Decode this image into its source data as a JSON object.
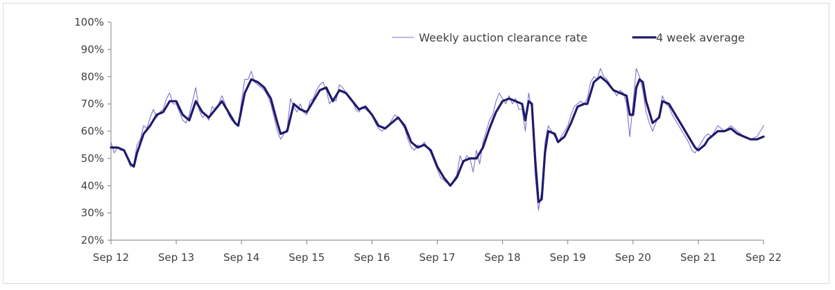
{
  "chart_data": {
    "type": "line",
    "title": "",
    "xlabel": "",
    "ylabel": "",
    "x_start": "Sep 12",
    "x_end": "Sep 22",
    "xticks": [
      "Sep 12",
      "Sep 13",
      "Sep 14",
      "Sep 15",
      "Sep 16",
      "Sep 17",
      "Sep 18",
      "Sep 19",
      "Sep 20",
      "Sep 21",
      "Sep 22"
    ],
    "yticks": [
      "20%",
      "30%",
      "40%",
      "50%",
      "60%",
      "70%",
      "80%",
      "90%",
      "100%"
    ],
    "ylim": [
      20,
      100
    ],
    "grid": false,
    "legend_position": "top-right",
    "series": [
      {
        "name": "Weekly auction clearance rate",
        "color": "#7b6fd0",
        "style": "thin",
        "points": [
          [
            0.0,
            56
          ],
          [
            0.05,
            52
          ],
          [
            0.1,
            54
          ],
          [
            0.15,
            53
          ],
          [
            0.2,
            53
          ],
          [
            0.25,
            50
          ],
          [
            0.3,
            47
          ],
          [
            0.35,
            48
          ],
          [
            0.4,
            55
          ],
          [
            0.45,
            57
          ],
          [
            0.5,
            62
          ],
          [
            0.55,
            61
          ],
          [
            0.6,
            65
          ],
          [
            0.65,
            68
          ],
          [
            0.7,
            65
          ],
          [
            0.75,
            67
          ],
          [
            0.8,
            68
          ],
          [
            0.85,
            72
          ],
          [
            0.9,
            74
          ],
          [
            0.95,
            70
          ],
          [
            1.0,
            70
          ],
          [
            1.05,
            67
          ],
          [
            1.1,
            64
          ],
          [
            1.15,
            63
          ],
          [
            1.2,
            66
          ],
          [
            1.25,
            71
          ],
          [
            1.3,
            76
          ],
          [
            1.35,
            68
          ],
          [
            1.4,
            65
          ],
          [
            1.45,
            66
          ],
          [
            1.5,
            64
          ],
          [
            1.55,
            69
          ],
          [
            1.6,
            68
          ],
          [
            1.65,
            70
          ],
          [
            1.7,
            73
          ],
          [
            1.75,
            70
          ],
          [
            1.8,
            66
          ],
          [
            1.85,
            64
          ],
          [
            1.9,
            63
          ],
          [
            1.95,
            62
          ],
          [
            2.0,
            71
          ],
          [
            2.05,
            79
          ],
          [
            2.1,
            79
          ],
          [
            2.15,
            82
          ],
          [
            2.2,
            78
          ],
          [
            2.25,
            77
          ],
          [
            2.3,
            76
          ],
          [
            2.35,
            75
          ],
          [
            2.4,
            73
          ],
          [
            2.45,
            70
          ],
          [
            2.5,
            65
          ],
          [
            2.55,
            60
          ],
          [
            2.6,
            57
          ],
          [
            2.65,
            59
          ],
          [
            2.7,
            61
          ],
          [
            2.75,
            72
          ],
          [
            2.8,
            69
          ],
          [
            2.85,
            67
          ],
          [
            2.9,
            70
          ],
          [
            2.95,
            67
          ],
          [
            3.0,
            66
          ],
          [
            3.05,
            71
          ],
          [
            3.1,
            72
          ],
          [
            3.15,
            75
          ],
          [
            3.2,
            77
          ],
          [
            3.25,
            78
          ],
          [
            3.3,
            75
          ],
          [
            3.35,
            70
          ],
          [
            3.4,
            72
          ],
          [
            3.45,
            71
          ],
          [
            3.5,
            77
          ],
          [
            3.55,
            76
          ],
          [
            3.6,
            74
          ],
          [
            3.65,
            72
          ],
          [
            3.7,
            71
          ],
          [
            3.75,
            68
          ],
          [
            3.8,
            67
          ],
          [
            3.85,
            69
          ],
          [
            3.9,
            68
          ],
          [
            3.95,
            67
          ],
          [
            4.0,
            66
          ],
          [
            4.05,
            63
          ],
          [
            4.1,
            61
          ],
          [
            4.15,
            60
          ],
          [
            4.2,
            61
          ],
          [
            4.25,
            62
          ],
          [
            4.3,
            64
          ],
          [
            4.35,
            66
          ],
          [
            4.4,
            65
          ],
          [
            4.45,
            63
          ],
          [
            4.5,
            61
          ],
          [
            4.55,
            57
          ],
          [
            4.6,
            54
          ],
          [
            4.65,
            53
          ],
          [
            4.7,
            55
          ],
          [
            4.75,
            54
          ],
          [
            4.8,
            56
          ],
          [
            4.85,
            54
          ],
          [
            4.9,
            52
          ],
          [
            4.95,
            49
          ],
          [
            5.0,
            46
          ],
          [
            5.05,
            43
          ],
          [
            5.1,
            42
          ],
          [
            5.15,
            41
          ],
          [
            5.2,
            40
          ],
          [
            5.25,
            42
          ],
          [
            5.3,
            44
          ],
          [
            5.35,
            51
          ],
          [
            5.4,
            48
          ],
          [
            5.45,
            51
          ],
          [
            5.5,
            50
          ],
          [
            5.55,
            45
          ],
          [
            5.6,
            53
          ],
          [
            5.65,
            48
          ],
          [
            5.7,
            56
          ],
          [
            5.75,
            60
          ],
          [
            5.8,
            64
          ],
          [
            5.85,
            66
          ],
          [
            5.9,
            71
          ],
          [
            5.95,
            74
          ],
          [
            6.0,
            72
          ],
          [
            6.05,
            70
          ],
          [
            6.1,
            73
          ],
          [
            6.15,
            70
          ],
          [
            6.2,
            72
          ],
          [
            6.25,
            68
          ],
          [
            6.3,
            68
          ],
          [
            6.35,
            60
          ],
          [
            6.4,
            74
          ],
          [
            6.45,
            68
          ],
          [
            6.5,
            44
          ],
          [
            6.55,
            31
          ],
          [
            6.6,
            38
          ],
          [
            6.65,
            56
          ],
          [
            6.7,
            62
          ],
          [
            6.75,
            60
          ],
          [
            6.8,
            58
          ],
          [
            6.85,
            56
          ],
          [
            6.9,
            58
          ],
          [
            6.95,
            60
          ],
          [
            7.0,
            62
          ],
          [
            7.05,
            66
          ],
          [
            7.1,
            69
          ],
          [
            7.15,
            70
          ],
          [
            7.2,
            71
          ],
          [
            7.25,
            70
          ],
          [
            7.3,
            72
          ],
          [
            7.35,
            78
          ],
          [
            7.4,
            80
          ],
          [
            7.45,
            79
          ],
          [
            7.5,
            83
          ],
          [
            7.55,
            80
          ],
          [
            7.6,
            79
          ],
          [
            7.65,
            77
          ],
          [
            7.7,
            75
          ],
          [
            7.75,
            73
          ],
          [
            7.8,
            75
          ],
          [
            7.85,
            74
          ],
          [
            7.9,
            70
          ],
          [
            7.95,
            58
          ],
          [
            8.0,
            70
          ],
          [
            8.05,
            83
          ],
          [
            8.1,
            80
          ],
          [
            8.15,
            75
          ],
          [
            8.2,
            67
          ],
          [
            8.25,
            63
          ],
          [
            8.3,
            60
          ],
          [
            8.35,
            63
          ],
          [
            8.4,
            66
          ],
          [
            8.45,
            73
          ],
          [
            8.5,
            70
          ],
          [
            8.55,
            69
          ],
          [
            8.6,
            66
          ],
          [
            8.65,
            64
          ],
          [
            8.7,
            62
          ],
          [
            8.75,
            60
          ],
          [
            8.8,
            58
          ],
          [
            8.85,
            56
          ],
          [
            8.9,
            53
          ],
          [
            8.95,
            52
          ],
          [
            9.0,
            54
          ],
          [
            9.05,
            56
          ],
          [
            9.1,
            58
          ],
          [
            9.15,
            59
          ],
          [
            9.2,
            58
          ],
          [
            9.25,
            60
          ],
          [
            9.3,
            62
          ],
          [
            9.4,
            60
          ],
          [
            9.5,
            62
          ],
          [
            9.6,
            60
          ],
          [
            9.7,
            58
          ],
          [
            9.8,
            57
          ],
          [
            9.9,
            58
          ],
          [
            10.0,
            62
          ]
        ]
      },
      {
        "name": "4 week average",
        "color": "#1f1a6b",
        "style": "thick",
        "points": [
          [
            0.0,
            54
          ],
          [
            0.1,
            54
          ],
          [
            0.2,
            53
          ],
          [
            0.3,
            48
          ],
          [
            0.35,
            47
          ],
          [
            0.4,
            52
          ],
          [
            0.5,
            59
          ],
          [
            0.6,
            62
          ],
          [
            0.7,
            66
          ],
          [
            0.8,
            67
          ],
          [
            0.9,
            71
          ],
          [
            1.0,
            71
          ],
          [
            1.1,
            66
          ],
          [
            1.2,
            64
          ],
          [
            1.3,
            71
          ],
          [
            1.4,
            67
          ],
          [
            1.5,
            65
          ],
          [
            1.6,
            68
          ],
          [
            1.7,
            71
          ],
          [
            1.8,
            67
          ],
          [
            1.9,
            63
          ],
          [
            1.95,
            62
          ],
          [
            2.05,
            74
          ],
          [
            2.15,
            79
          ],
          [
            2.25,
            78
          ],
          [
            2.35,
            76
          ],
          [
            2.45,
            72
          ],
          [
            2.55,
            63
          ],
          [
            2.6,
            59
          ],
          [
            2.7,
            60
          ],
          [
            2.8,
            70
          ],
          [
            2.9,
            68
          ],
          [
            3.0,
            67
          ],
          [
            3.1,
            71
          ],
          [
            3.2,
            75
          ],
          [
            3.3,
            76
          ],
          [
            3.4,
            71
          ],
          [
            3.5,
            75
          ],
          [
            3.6,
            74
          ],
          [
            3.7,
            71
          ],
          [
            3.8,
            68
          ],
          [
            3.9,
            69
          ],
          [
            4.0,
            66
          ],
          [
            4.1,
            62
          ],
          [
            4.2,
            61
          ],
          [
            4.3,
            63
          ],
          [
            4.4,
            65
          ],
          [
            4.5,
            62
          ],
          [
            4.6,
            56
          ],
          [
            4.7,
            54
          ],
          [
            4.8,
            55
          ],
          [
            4.9,
            53
          ],
          [
            5.0,
            47
          ],
          [
            5.1,
            43
          ],
          [
            5.2,
            40
          ],
          [
            5.3,
            43
          ],
          [
            5.4,
            49
          ],
          [
            5.5,
            50
          ],
          [
            5.6,
            50
          ],
          [
            5.7,
            54
          ],
          [
            5.8,
            61
          ],
          [
            5.9,
            67
          ],
          [
            6.0,
            71
          ],
          [
            6.1,
            72
          ],
          [
            6.2,
            71
          ],
          [
            6.3,
            70
          ],
          [
            6.35,
            64
          ],
          [
            6.4,
            71
          ],
          [
            6.45,
            70
          ],
          [
            6.5,
            50
          ],
          [
            6.55,
            34
          ],
          [
            6.6,
            35
          ],
          [
            6.65,
            52
          ],
          [
            6.7,
            60
          ],
          [
            6.8,
            59
          ],
          [
            6.85,
            56
          ],
          [
            6.95,
            58
          ],
          [
            7.05,
            63
          ],
          [
            7.15,
            69
          ],
          [
            7.25,
            70
          ],
          [
            7.3,
            70
          ],
          [
            7.4,
            78
          ],
          [
            7.5,
            80
          ],
          [
            7.6,
            78
          ],
          [
            7.7,
            75
          ],
          [
            7.8,
            74
          ],
          [
            7.9,
            73
          ],
          [
            7.95,
            66
          ],
          [
            8.0,
            66
          ],
          [
            8.05,
            76
          ],
          [
            8.1,
            79
          ],
          [
            8.15,
            78
          ],
          [
            8.2,
            71
          ],
          [
            8.3,
            63
          ],
          [
            8.4,
            65
          ],
          [
            8.45,
            71
          ],
          [
            8.55,
            70
          ],
          [
            8.65,
            66
          ],
          [
            8.75,
            62
          ],
          [
            8.85,
            58
          ],
          [
            8.95,
            54
          ],
          [
            9.0,
            53
          ],
          [
            9.1,
            55
          ],
          [
            9.15,
            57
          ],
          [
            9.2,
            58
          ],
          [
            9.3,
            60
          ],
          [
            9.4,
            60
          ],
          [
            9.5,
            61
          ],
          [
            9.6,
            59
          ],
          [
            9.7,
            58
          ],
          [
            9.8,
            57
          ],
          [
            9.9,
            57
          ],
          [
            10.0,
            58
          ]
        ]
      }
    ]
  }
}
